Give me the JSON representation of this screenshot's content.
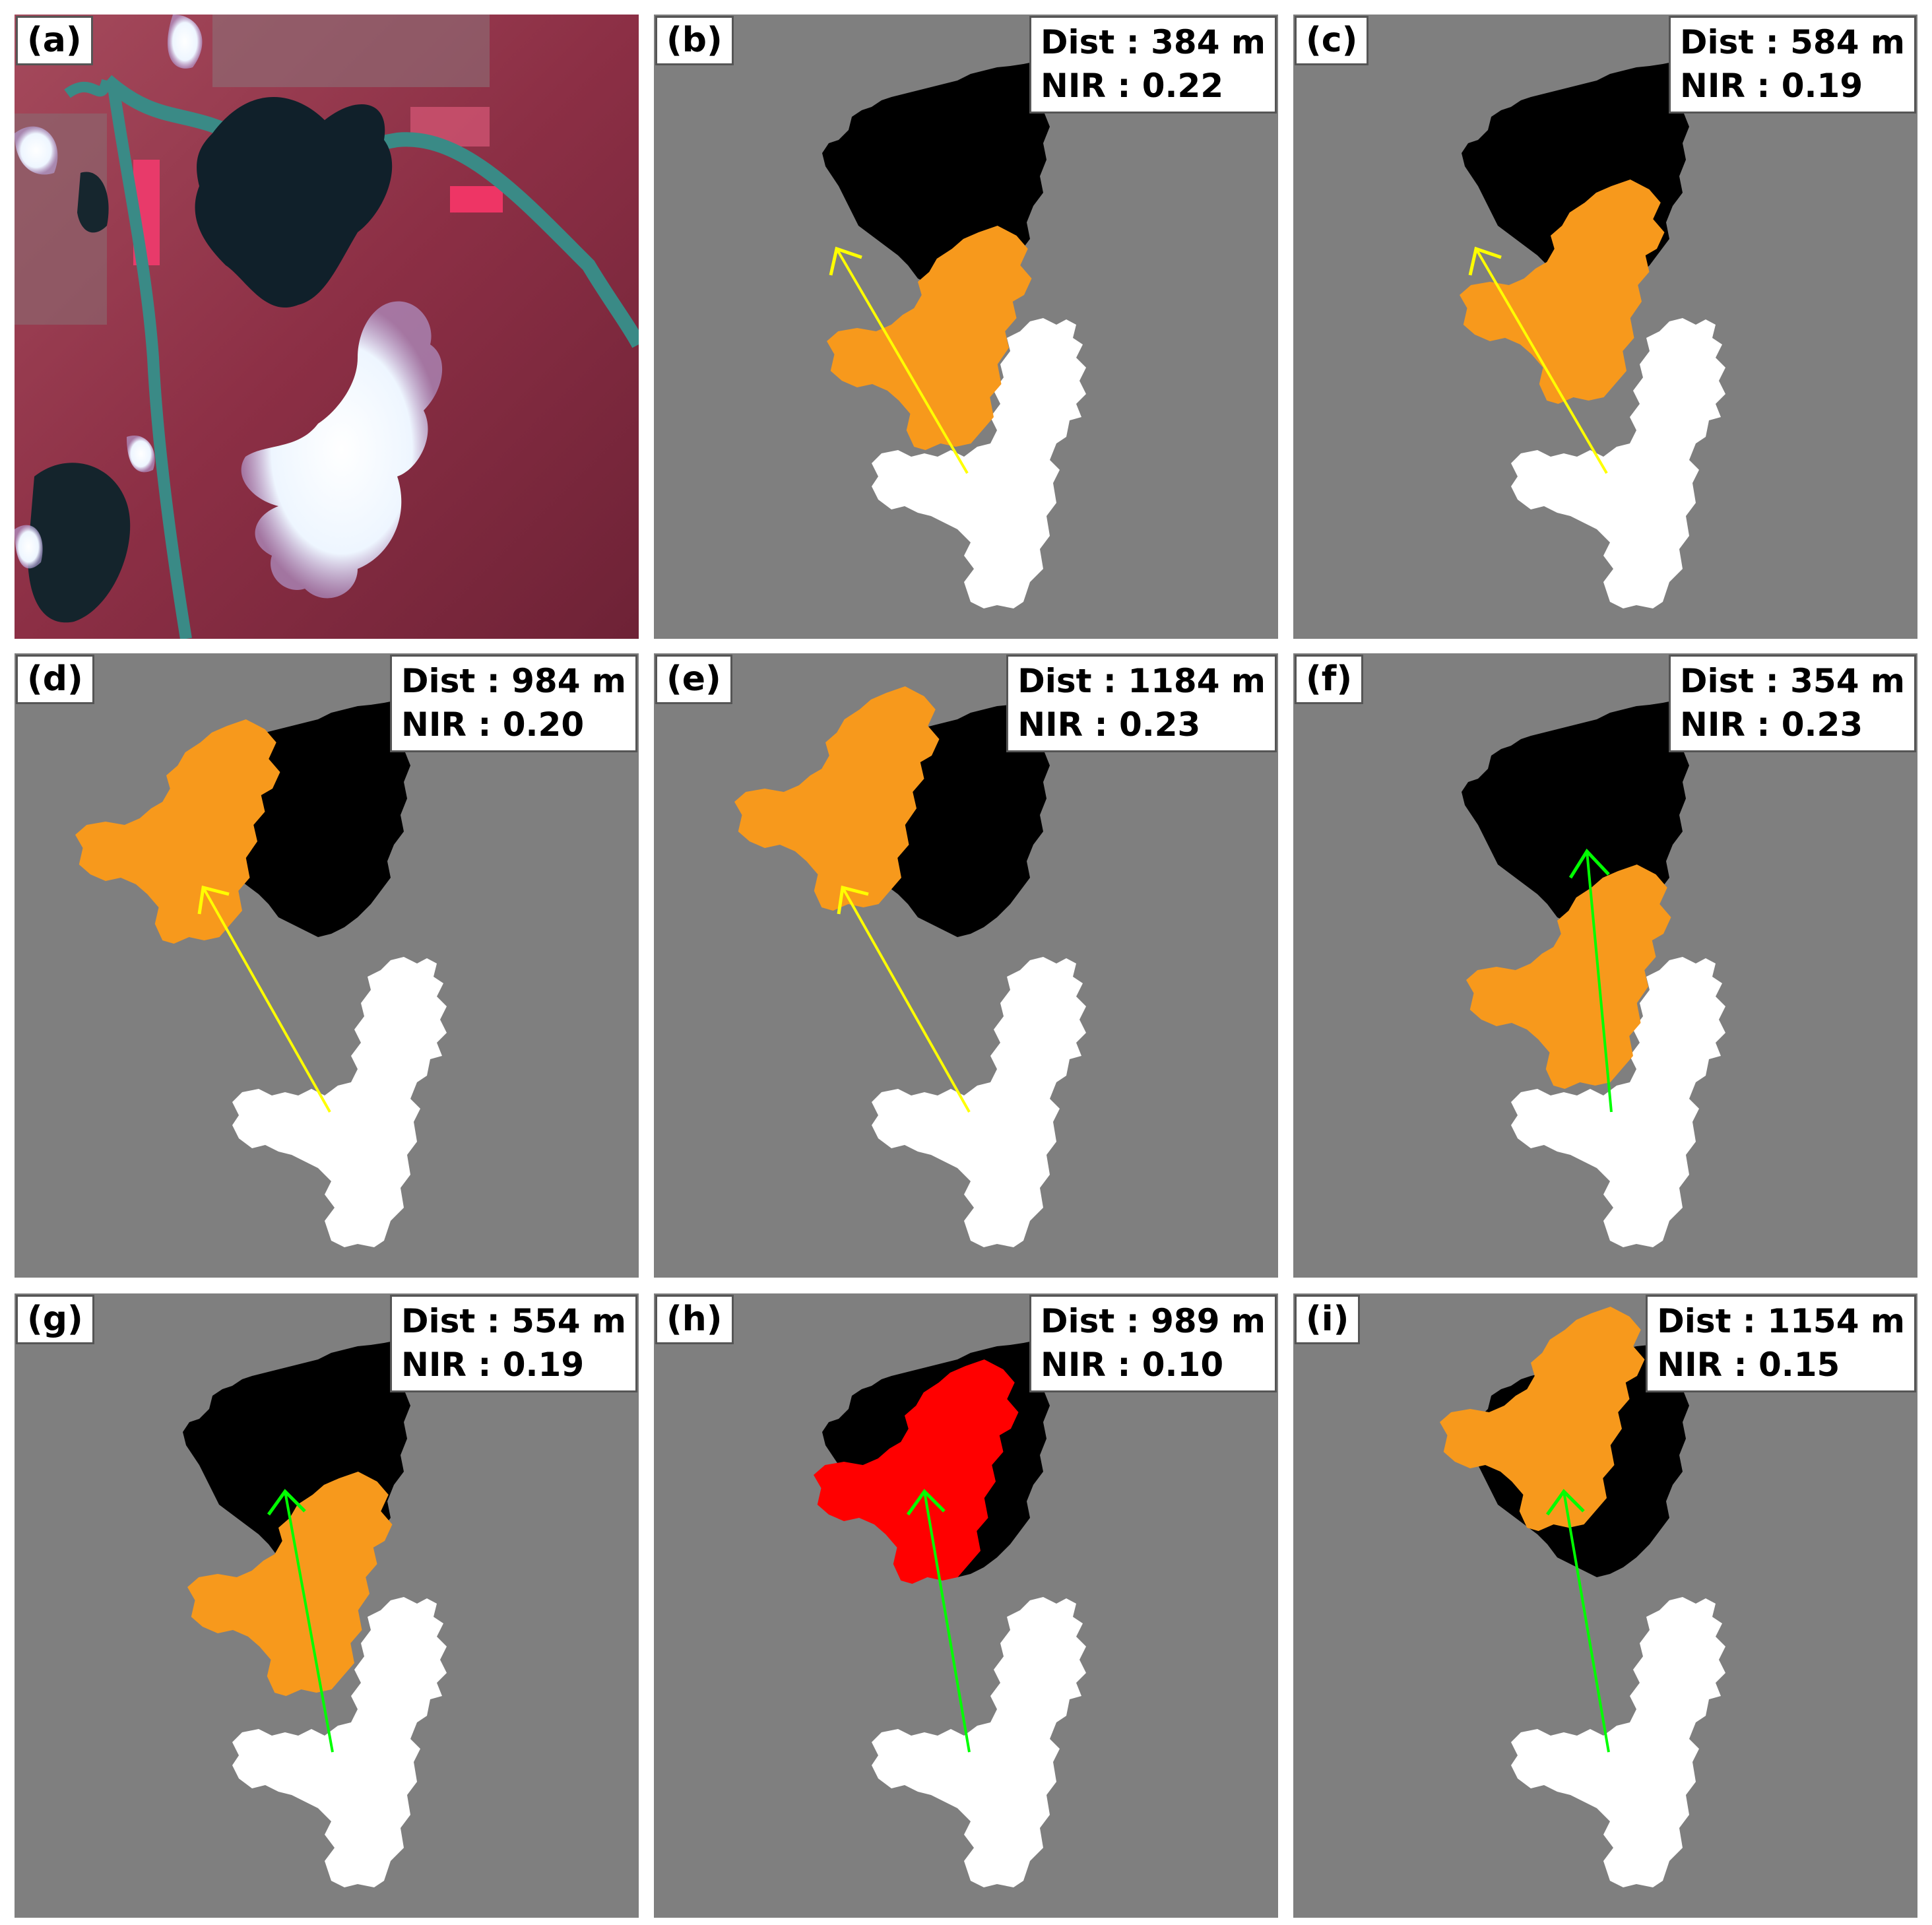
{
  "colors": {
    "background": "#7f7f7f",
    "cloud": "#ffffff",
    "shadow": "#000000",
    "projection": "#f7991c",
    "best_match": "#ff0000",
    "arrow_search_1": "#ffff00",
    "arrow_search_2": "#00ff00"
  },
  "panels": [
    {
      "label": "(a)",
      "type": "satellite-image"
    },
    {
      "label": "(b)",
      "type": "shadow-match",
      "dist": "Dist : 384 m",
      "nir": "NIR : 0.22",
      "arrow": "yellow",
      "match": "orange"
    },
    {
      "label": "(c)",
      "type": "shadow-match",
      "dist": "Dist : 584 m",
      "nir": "NIR : 0.19",
      "arrow": "yellow",
      "match": "orange"
    },
    {
      "label": "(d)",
      "type": "shadow-match",
      "dist": "Dist : 984 m",
      "nir": "NIR : 0.20",
      "arrow": "yellow",
      "match": "orange"
    },
    {
      "label": "(e)",
      "type": "shadow-match",
      "dist": "Dist : 1184 m",
      "nir": "NIR : 0.23",
      "arrow": "yellow",
      "match": "orange"
    },
    {
      "label": "(f)",
      "type": "shadow-match",
      "dist": "Dist : 354 m",
      "nir": "NIR : 0.23",
      "arrow": "green",
      "match": "orange"
    },
    {
      "label": "(g)",
      "type": "shadow-match",
      "dist": "Dist : 554 m",
      "nir": "NIR : 0.19",
      "arrow": "green",
      "match": "orange"
    },
    {
      "label": "(h)",
      "type": "shadow-match",
      "dist": "Dist : 989 m",
      "nir": "NIR : 0.10",
      "arrow": "green",
      "match": "red"
    },
    {
      "label": "(i)",
      "type": "shadow-match",
      "dist": "Dist : 1154 m",
      "nir": "NIR : 0.15",
      "arrow": "green",
      "match": "orange"
    }
  ]
}
